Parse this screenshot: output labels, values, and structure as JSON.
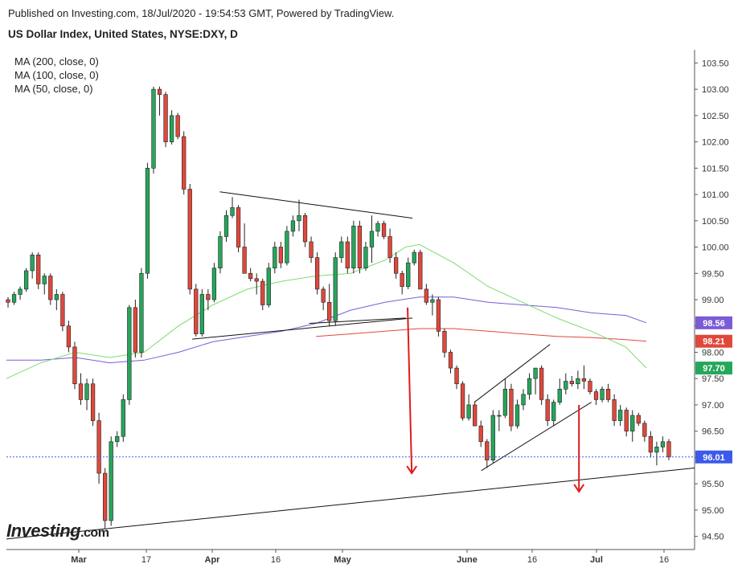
{
  "header": {
    "published": "Published on Investing.com, 18/Jul/2020 - 19:54:53 GMT, Powered by TradingView.",
    "title": "US Dollar Index, United States, NYSE:DXY, D"
  },
  "legend": {
    "ma200": "MA (200, close, 0)",
    "ma100": "MA (100, close, 0)",
    "ma50": "MA (50, close, 0)"
  },
  "logo": {
    "text": "Investing.com"
  },
  "colors": {
    "up": "#26a65b",
    "down": "#e0483b",
    "ma50": "#7ddc6f",
    "ma100": "#7b5bd6",
    "ma200": "#e0483b",
    "price_badge": "#3c5be8",
    "trendline": "#111111",
    "arrow": "#e01b1b"
  },
  "chart_data": {
    "type": "candlestick",
    "ylim": [
      94.25,
      103.75
    ],
    "y_ticks": [
      "103.50",
      "103.00",
      "102.50",
      "102.00",
      "101.50",
      "101.00",
      "100.50",
      "100.00",
      "99.50",
      "99.00",
      "98.50",
      "98.00",
      "97.50",
      "97.00",
      "96.50",
      "96.00",
      "95.50",
      "95.00",
      "94.50"
    ],
    "x_tick_labels": [
      "Mar",
      "17",
      "Apr",
      "16",
      "May",
      "June",
      "16",
      "Jul",
      "16"
    ],
    "badges": [
      {
        "label": "98.56",
        "value": 98.56,
        "color": "#7b5bd6",
        "series": "MA (100, close, 0)"
      },
      {
        "label": "98.21",
        "value": 98.21,
        "color": "#e0483b",
        "series": "MA (200, close, 0)"
      },
      {
        "label": "97.70",
        "value": 97.7,
        "color": "#26a65b",
        "series": "MA (50, close, 0)"
      },
      {
        "label": "96.01",
        "value": 96.01,
        "color": "#3c5be8",
        "series": "last price"
      }
    ],
    "last_price": 96.01,
    "candles_ohlc": [
      [
        99.0,
        99.05,
        98.85,
        98.95
      ],
      [
        98.95,
        99.15,
        98.9,
        99.1
      ],
      [
        99.1,
        99.25,
        99.0,
        99.2
      ],
      [
        99.2,
        99.6,
        99.15,
        99.55
      ],
      [
        99.55,
        99.9,
        99.4,
        99.85
      ],
      [
        99.85,
        99.9,
        99.2,
        99.3
      ],
      [
        99.3,
        99.5,
        99.1,
        99.45
      ],
      [
        99.45,
        99.5,
        98.9,
        99.0
      ],
      [
        99.0,
        99.2,
        98.8,
        99.1
      ],
      [
        99.1,
        99.15,
        98.4,
        98.5
      ],
      [
        98.5,
        98.6,
        98.0,
        98.1
      ],
      [
        98.1,
        98.2,
        97.3,
        97.4
      ],
      [
        97.4,
        97.6,
        97.0,
        97.1
      ],
      [
        97.1,
        97.5,
        96.9,
        97.4
      ],
      [
        97.4,
        97.5,
        96.6,
        96.7
      ],
      [
        96.7,
        96.85,
        95.5,
        95.7
      ],
      [
        95.7,
        95.8,
        94.65,
        94.8
      ],
      [
        94.8,
        96.4,
        94.7,
        96.3
      ],
      [
        96.3,
        96.5,
        96.2,
        96.4
      ],
      [
        96.4,
        97.2,
        96.3,
        97.1
      ],
      [
        97.1,
        98.9,
        97.0,
        98.85
      ],
      [
        98.85,
        99.0,
        97.9,
        98.0
      ],
      [
        98.0,
        99.6,
        97.9,
        99.5
      ],
      [
        99.5,
        101.6,
        99.4,
        101.5
      ],
      [
        101.5,
        103.05,
        101.4,
        103.0
      ],
      [
        103.0,
        103.05,
        102.5,
        102.9
      ],
      [
        102.9,
        102.95,
        101.9,
        102.0
      ],
      [
        102.0,
        102.6,
        101.95,
        102.5
      ],
      [
        102.5,
        102.55,
        102.05,
        102.1
      ],
      [
        102.1,
        102.2,
        101.0,
        101.1
      ],
      [
        101.1,
        101.2,
        99.1,
        99.2
      ],
      [
        99.2,
        99.3,
        98.3,
        98.35
      ],
      [
        98.35,
        99.2,
        98.3,
        99.1
      ],
      [
        99.1,
        99.2,
        98.8,
        99.0
      ],
      [
        99.0,
        99.7,
        98.95,
        99.6
      ],
      [
        99.6,
        100.3,
        99.5,
        100.2
      ],
      [
        100.2,
        100.7,
        100.1,
        100.6
      ],
      [
        100.6,
        100.95,
        100.55,
        100.75
      ],
      [
        100.75,
        100.8,
        99.9,
        100.0
      ],
      [
        100.0,
        100.45,
        99.6,
        99.5
      ],
      [
        99.5,
        99.6,
        99.35,
        99.4
      ],
      [
        99.4,
        99.5,
        99.1,
        99.35
      ],
      [
        99.35,
        99.4,
        98.8,
        98.9
      ],
      [
        98.9,
        99.7,
        98.85,
        99.6
      ],
      [
        99.6,
        100.1,
        99.5,
        100.0
      ],
      [
        100.0,
        100.1,
        99.6,
        99.7
      ],
      [
        99.7,
        100.4,
        99.65,
        100.3
      ],
      [
        100.3,
        100.6,
        100.2,
        100.5
      ],
      [
        100.5,
        100.9,
        100.3,
        100.6
      ],
      [
        100.6,
        100.65,
        100.0,
        100.1
      ],
      [
        100.1,
        100.2,
        99.7,
        99.8
      ],
      [
        99.8,
        99.9,
        99.1,
        99.2
      ],
      [
        99.2,
        99.25,
        98.8,
        98.95
      ],
      [
        98.95,
        99.3,
        98.5,
        98.6
      ],
      [
        98.6,
        99.9,
        98.5,
        99.8
      ],
      [
        99.8,
        100.2,
        99.7,
        100.1
      ],
      [
        100.1,
        100.2,
        99.5,
        99.6
      ],
      [
        99.6,
        100.5,
        99.5,
        100.4
      ],
      [
        100.4,
        100.5,
        99.5,
        99.6
      ],
      [
        99.6,
        100.1,
        99.55,
        100.0
      ],
      [
        100.0,
        100.6,
        99.7,
        100.3
      ],
      [
        100.3,
        100.5,
        100.2,
        100.45
      ],
      [
        100.45,
        100.5,
        100.15,
        100.2
      ],
      [
        100.2,
        100.35,
        99.7,
        99.8
      ],
      [
        99.8,
        99.9,
        99.4,
        99.5
      ],
      [
        99.5,
        99.55,
        99.1,
        99.25
      ],
      [
        99.25,
        99.8,
        99.2,
        99.7
      ],
      [
        99.7,
        99.95,
        99.65,
        99.9
      ],
      [
        99.9,
        99.95,
        99.3,
        99.2
      ],
      [
        99.2,
        99.3,
        98.9,
        98.95
      ],
      [
        98.95,
        99.1,
        98.7,
        99.0
      ],
      [
        99.0,
        99.05,
        98.3,
        98.4
      ],
      [
        98.4,
        98.45,
        97.9,
        98.0
      ],
      [
        98.0,
        98.05,
        97.6,
        97.7
      ],
      [
        97.7,
        97.75,
        97.3,
        97.4
      ],
      [
        97.4,
        97.45,
        96.7,
        96.75
      ],
      [
        96.75,
        97.2,
        96.7,
        97.0
      ],
      [
        97.0,
        97.05,
        96.6,
        96.6
      ],
      [
        96.6,
        96.7,
        96.2,
        96.3
      ],
      [
        96.3,
        96.35,
        95.8,
        95.95
      ],
      [
        95.95,
        96.9,
        95.9,
        96.8
      ],
      [
        96.8,
        96.9,
        96.5,
        96.8
      ],
      [
        96.8,
        97.5,
        96.75,
        97.3
      ],
      [
        97.3,
        97.4,
        96.5,
        96.6
      ],
      [
        96.6,
        97.1,
        96.55,
        97.0
      ],
      [
        97.0,
        97.3,
        96.9,
        97.2
      ],
      [
        97.2,
        97.6,
        97.1,
        97.5
      ],
      [
        97.5,
        97.7,
        97.2,
        97.7
      ],
      [
        97.7,
        97.75,
        97.0,
        97.1
      ],
      [
        97.1,
        97.2,
        96.6,
        96.7
      ],
      [
        96.7,
        97.1,
        96.6,
        97.05
      ],
      [
        97.05,
        97.5,
        97.0,
        97.3
      ],
      [
        97.3,
        97.6,
        97.2,
        97.45
      ],
      [
        97.45,
        97.55,
        97.35,
        97.4
      ],
      [
        97.4,
        97.65,
        97.3,
        97.5
      ],
      [
        97.5,
        97.75,
        97.3,
        97.45
      ],
      [
        97.45,
        97.5,
        97.2,
        97.25
      ],
      [
        97.25,
        97.3,
        97.0,
        97.1
      ],
      [
        97.1,
        97.35,
        97.05,
        97.3
      ],
      [
        97.3,
        97.4,
        97.05,
        97.1
      ],
      [
        97.1,
        97.2,
        96.6,
        96.7
      ],
      [
        96.7,
        97.0,
        96.6,
        96.9
      ],
      [
        96.9,
        96.95,
        96.4,
        96.5
      ],
      [
        96.5,
        96.9,
        96.3,
        96.8
      ],
      [
        96.8,
        96.85,
        96.6,
        96.65
      ],
      [
        96.65,
        96.7,
        96.3,
        96.4
      ],
      [
        96.4,
        96.5,
        96.0,
        96.1
      ],
      [
        96.1,
        96.3,
        95.85,
        96.2
      ],
      [
        96.2,
        96.4,
        96.1,
        96.3
      ],
      [
        96.3,
        96.35,
        95.95,
        96.01
      ]
    ],
    "trendlines": [
      {
        "points": [
          [
            0.0,
            94.45
          ],
          [
            1.0,
            95.8
          ]
        ],
        "kind": "long-term support"
      },
      {
        "points": [
          [
            0.31,
            101.05
          ],
          [
            0.59,
            100.55
          ]
        ],
        "kind": "triangle top"
      },
      {
        "points": [
          [
            0.27,
            98.25
          ],
          [
            0.59,
            98.65
          ]
        ],
        "kind": "triangle bottom"
      },
      {
        "points": [
          [
            0.68,
            97.05
          ],
          [
            0.79,
            98.15
          ]
        ],
        "kind": "channel top"
      },
      {
        "points": [
          [
            0.69,
            95.75
          ],
          [
            0.85,
            97.05
          ]
        ],
        "kind": "channel bottom"
      },
      {
        "points": [
          [
            0.44,
            98.55
          ],
          [
            0.58,
            98.65
          ]
        ],
        "kind": "neckline"
      }
    ],
    "arrows": [
      {
        "from": [
          0.583,
          98.85
        ],
        "to": [
          0.589,
          95.7
        ]
      },
      {
        "from": [
          0.832,
          97.0
        ],
        "to": [
          0.832,
          95.35
        ]
      }
    ],
    "ma50": [
      [
        0.0,
        97.5
      ],
      [
        0.05,
        97.8
      ],
      [
        0.1,
        98.0
      ],
      [
        0.15,
        97.9
      ],
      [
        0.2,
        98.0
      ],
      [
        0.25,
        98.5
      ],
      [
        0.3,
        98.9
      ],
      [
        0.35,
        99.2
      ],
      [
        0.4,
        99.35
      ],
      [
        0.45,
        99.45
      ],
      [
        0.5,
        99.5
      ],
      [
        0.55,
        99.75
      ],
      [
        0.58,
        100.0
      ],
      [
        0.6,
        100.05
      ],
      [
        0.65,
        99.7
      ],
      [
        0.7,
        99.25
      ],
      [
        0.75,
        98.95
      ],
      [
        0.8,
        98.65
      ],
      [
        0.85,
        98.4
      ],
      [
        0.9,
        98.1
      ],
      [
        0.93,
        97.7
      ]
    ],
    "ma100": [
      [
        0.0,
        97.85
      ],
      [
        0.05,
        97.85
      ],
      [
        0.1,
        97.9
      ],
      [
        0.15,
        97.8
      ],
      [
        0.2,
        97.85
      ],
      [
        0.25,
        98.0
      ],
      [
        0.3,
        98.2
      ],
      [
        0.35,
        98.3
      ],
      [
        0.4,
        98.4
      ],
      [
        0.45,
        98.55
      ],
      [
        0.5,
        98.8
      ],
      [
        0.55,
        98.95
      ],
      [
        0.6,
        99.05
      ],
      [
        0.65,
        99.05
      ],
      [
        0.7,
        98.95
      ],
      [
        0.75,
        98.9
      ],
      [
        0.8,
        98.85
      ],
      [
        0.85,
        98.75
      ],
      [
        0.9,
        98.7
      ],
      [
        0.93,
        98.56
      ]
    ],
    "ma200": [
      [
        0.45,
        98.3
      ],
      [
        0.5,
        98.35
      ],
      [
        0.55,
        98.4
      ],
      [
        0.6,
        98.45
      ],
      [
        0.65,
        98.45
      ],
      [
        0.7,
        98.4
      ],
      [
        0.75,
        98.35
      ],
      [
        0.8,
        98.3
      ],
      [
        0.85,
        98.28
      ],
      [
        0.9,
        98.24
      ],
      [
        0.93,
        98.21
      ]
    ]
  }
}
